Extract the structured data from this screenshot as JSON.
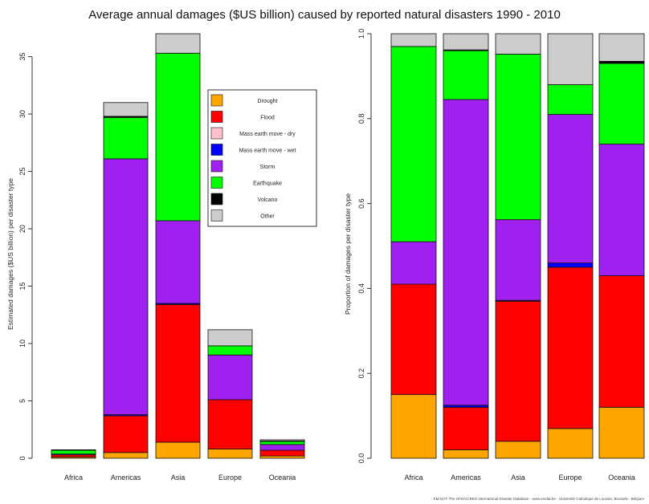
{
  "title": "Average annual damages ($US billion) caused by reported natural disasters 1990 - 2010",
  "source": "EM-DAT: The OFDA/CRED International Disaster Database - www.emdat.be - Université Catholique de Louvain, Brussels - Belgium",
  "colors": {
    "Drought": "#ffa500",
    "Flood": "#ff0000",
    "Mass earth move - dry": "#ffc0cb",
    "Mass earth move - wet": "#0000ff",
    "Storm": "#a020f0",
    "Earthquake": "#00ff00",
    "Volcano": "#000000",
    "Other": "#cccccc"
  },
  "chart_data": [
    {
      "type": "bar",
      "stacked": true,
      "categories": [
        "Africa",
        "Americas",
        "Asia",
        "Europe",
        "Oceania"
      ],
      "ylabel": "Estimated damages ($US billion) per disaster type",
      "ylim": [
        0,
        37
      ],
      "yticks": [
        0,
        5,
        10,
        15,
        20,
        25,
        30,
        35
      ],
      "legend_position": "center",
      "legend": [
        "Drought",
        "Flood",
        "Mass earth move - dry",
        "Mass earth move - wet",
        "Storm",
        "Earthquake",
        "Volcano",
        "Other"
      ],
      "series": [
        {
          "name": "Drought",
          "values": [
            0.1,
            0.5,
            1.4,
            0.8,
            0.2
          ]
        },
        {
          "name": "Flood",
          "values": [
            0.2,
            3.2,
            12.0,
            4.3,
            0.5
          ]
        },
        {
          "name": "Mass earth move - dry",
          "values": [
            0,
            0,
            0,
            0,
            0
          ]
        },
        {
          "name": "Mass earth move - wet",
          "values": [
            0,
            0.1,
            0.1,
            0,
            0
          ]
        },
        {
          "name": "Storm",
          "values": [
            0.07,
            22.3,
            7.2,
            3.9,
            0.5
          ]
        },
        {
          "name": "Earthquake",
          "values": [
            0.33,
            3.6,
            14.6,
            0.8,
            0.3
          ]
        },
        {
          "name": "Volcano",
          "values": [
            0,
            0.1,
            0,
            0,
            0.01
          ]
        },
        {
          "name": "Other",
          "values": [
            0.04,
            1.2,
            1.7,
            1.4,
            0.1
          ]
        }
      ]
    },
    {
      "type": "bar",
      "stacked": true,
      "categories": [
        "Africa",
        "Americas",
        "Asia",
        "Europe",
        "Oceania"
      ],
      "ylabel": "Proportion of damages per disaster type",
      "ylim": [
        0,
        1
      ],
      "yticks": [
        "0.0",
        "0.2",
        "0.4",
        "0.6",
        "0.8",
        "1.0"
      ],
      "series": [
        {
          "name": "Drought",
          "values": [
            0.15,
            0.02,
            0.04,
            0.07,
            0.12
          ]
        },
        {
          "name": "Flood",
          "values": [
            0.26,
            0.1,
            0.33,
            0.38,
            0.31
          ]
        },
        {
          "name": "Mass earth move - dry",
          "values": [
            0,
            0,
            0,
            0,
            0
          ]
        },
        {
          "name": "Mass earth move - wet",
          "values": [
            0,
            0.005,
            0.002,
            0.01,
            0
          ]
        },
        {
          "name": "Storm",
          "values": [
            0.1,
            0.72,
            0.19,
            0.35,
            0.31
          ]
        },
        {
          "name": "Earthquake",
          "values": [
            0.46,
            0.115,
            0.39,
            0.07,
            0.19
          ]
        },
        {
          "name": "Volcano",
          "values": [
            0,
            0.002,
            0,
            0,
            0.005
          ]
        },
        {
          "name": "Other",
          "values": [
            0.03,
            0.038,
            0.048,
            0.12,
            0.065
          ]
        }
      ]
    }
  ]
}
